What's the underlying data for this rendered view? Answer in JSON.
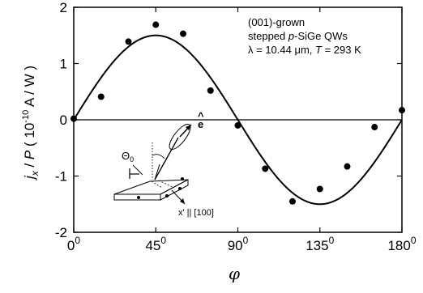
{
  "chart_data": {
    "type": "scatter",
    "xlabel": "φ",
    "ylabel_parts": {
      "j": "j",
      "x_sub": "x",
      "slash": " / ",
      "P": "P",
      "open": " ( 10",
      "exp": "-10",
      "unit": " A / W )"
    },
    "xlim": [
      0,
      180
    ],
    "ylim": [
      -2,
      2
    ],
    "x_ticks": [
      {
        "value": 0,
        "base": "0",
        "sup": "0"
      },
      {
        "value": 45,
        "base": "45",
        "sup": "0"
      },
      {
        "value": 90,
        "base": "90",
        "sup": "0"
      },
      {
        "value": 135,
        "base": "135",
        "sup": "0"
      },
      {
        "value": 180,
        "base": "180",
        "sup": "0"
      }
    ],
    "y_ticks": [
      {
        "value": 2,
        "label": "2"
      },
      {
        "value": 1,
        "label": "1"
      },
      {
        "value": 0,
        "label": "0"
      },
      {
        "value": -1,
        "label": "-1"
      },
      {
        "value": -2,
        "label": "-2"
      }
    ],
    "zero_line": true,
    "points": {
      "x": [
        0,
        15,
        30,
        45,
        60,
        75,
        90,
        105,
        120,
        135,
        150,
        165,
        180
      ],
      "y": [
        0.02,
        0.41,
        1.39,
        1.69,
        1.53,
        0.52,
        -0.1,
        -0.87,
        -1.45,
        -1.23,
        -0.83,
        -0.13,
        0.17
      ]
    },
    "fit": {
      "function": "A*sin(2*phi)",
      "amplitude": 1.5
    },
    "legend": {
      "lines": [
        [
          {
            "t": "(001)-grown"
          }
        ],
        [
          {
            "t": "stepped "
          },
          {
            "t": "p",
            "i": true
          },
          {
            "t": "-SiGe QWs"
          }
        ],
        [
          {
            "t": "λ = 10.44 μm, "
          },
          {
            "t": "T",
            "i": true
          },
          {
            "t": " = 293 K"
          }
        ]
      ]
    },
    "inset": {
      "theta_label": "Θ",
      "theta_sub": "0",
      "e_label": "e",
      "e_hat": "^",
      "x_label": "x' || [100]"
    }
  }
}
